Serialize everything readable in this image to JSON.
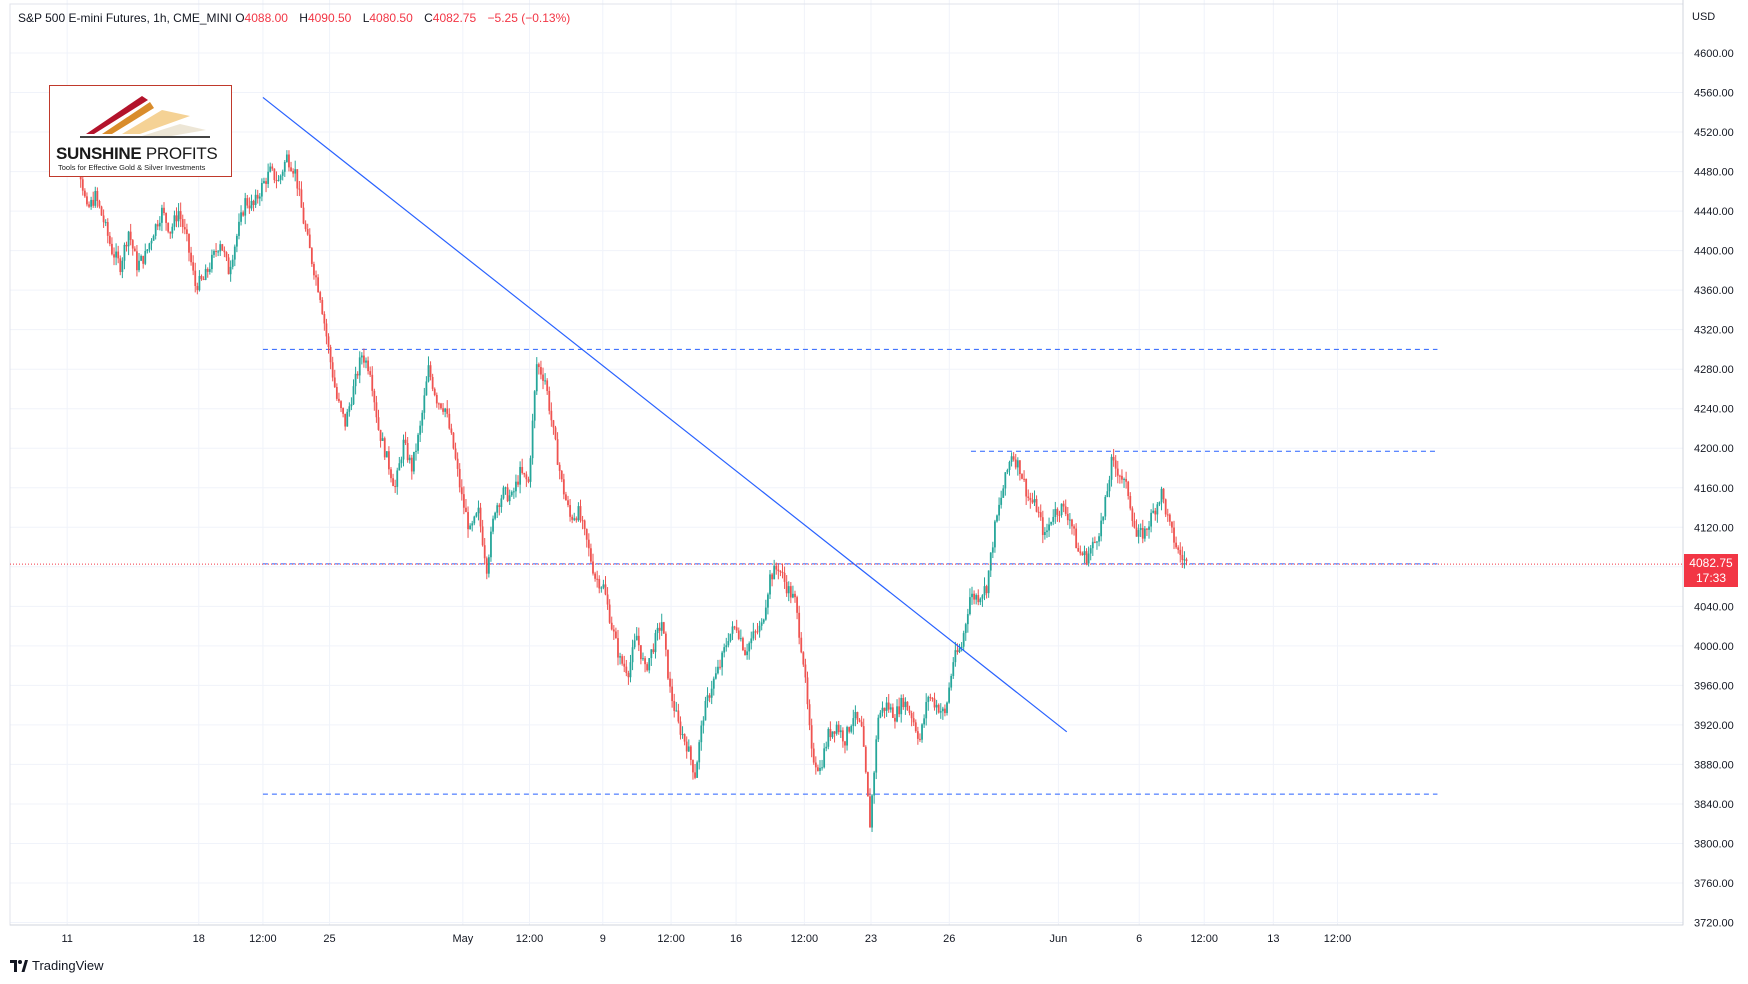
{
  "header": {
    "symbol": "S&P 500 E-mini Futures, 1h, CME_MINI",
    "open_label": "O",
    "open": "4088.00",
    "high_label": "H",
    "high": "4090.50",
    "low_label": "L",
    "low": "4080.50",
    "close_label": "C",
    "close": "4082.75",
    "change": "−5.25 (−0.13%)"
  },
  "axis": {
    "currency": "USD"
  },
  "price_tag": {
    "price": "4082.75",
    "countdown": "17:33"
  },
  "logo": {
    "title_bold": "SUNSHINE",
    "title_thin": " PROFITS",
    "subtitle": "Tools for Effective Gold & Silver Investments"
  },
  "footer": {
    "brand": "TradingView"
  },
  "colors": {
    "up": "#26a69a",
    "down": "#ef5350",
    "trendline": "#2962ff",
    "level": "#2962ff",
    "price": "#f23645"
  },
  "chart_data": {
    "type": "candlestick",
    "interval": "1h",
    "ylim": [
      3720,
      4620
    ],
    "y_ticks": [
      3720,
      3760,
      3800,
      3840,
      3880,
      3920,
      3960,
      4000,
      4040,
      4080,
      4120,
      4160,
      4200,
      4240,
      4280,
      4320,
      4360,
      4400,
      4440,
      4480,
      4520,
      4560,
      4600
    ],
    "y_tick_labels": [
      "3720.00",
      "3760.00",
      "3800.00",
      "3840.00",
      "3880.00",
      "3920.00",
      "3960.00",
      "4000.00",
      "4040.00",
      "4080.00",
      "4120.00",
      "4160.00",
      "4200.00",
      "4240.00",
      "4280.00",
      "4320.00",
      "4360.00",
      "4400.00",
      "4440.00",
      "4480.00",
      "4520.00",
      "4560.00",
      "4600.00"
    ],
    "x_ticks": [
      "11",
      "18",
      "12:00",
      "25",
      "May",
      "12:00",
      "9",
      "12:00",
      "16",
      "12:00",
      "23",
      "26",
      "Jun",
      "6",
      "12:00",
      "13",
      "12:00"
    ],
    "x_tick_index": [
      0.5,
      16.3,
      24.0,
      32.0,
      48.0,
      56.0,
      64.8,
      73.0,
      80.8,
      89.0,
      97.0,
      106.4,
      119.5,
      129.2,
      137.0,
      145.3,
      153.0
    ],
    "price_path": [
      [
        0,
        4490
      ],
      [
        1,
        4510
      ],
      [
        2,
        4490
      ],
      [
        3,
        4440
      ],
      [
        4,
        4455
      ],
      [
        5,
        4430
      ],
      [
        6,
        4400
      ],
      [
        7,
        4385
      ],
      [
        8,
        4420
      ],
      [
        9,
        4385
      ],
      [
        10,
        4395
      ],
      [
        11,
        4420
      ],
      [
        12,
        4440
      ],
      [
        13,
        4420
      ],
      [
        14,
        4440
      ],
      [
        15,
        4410
      ],
      [
        16,
        4365
      ],
      [
        17,
        4370
      ],
      [
        18,
        4390
      ],
      [
        19,
        4410
      ],
      [
        20,
        4380
      ],
      [
        21,
        4415
      ],
      [
        22,
        4450
      ],
      [
        23,
        4445
      ],
      [
        24,
        4465
      ],
      [
        25,
        4480
      ],
      [
        26,
        4470
      ],
      [
        27,
        4495
      ],
      [
        28,
        4480
      ],
      [
        29,
        4430
      ],
      [
        30,
        4390
      ],
      [
        31,
        4355
      ],
      [
        32,
        4300
      ],
      [
        33,
        4250
      ],
      [
        34,
        4225
      ],
      [
        35,
        4260
      ],
      [
        36,
        4295
      ],
      [
        37,
        4280
      ],
      [
        38,
        4220
      ],
      [
        39,
        4190
      ],
      [
        40,
        4160
      ],
      [
        41,
        4205
      ],
      [
        42,
        4180
      ],
      [
        43,
        4220
      ],
      [
        44,
        4280
      ],
      [
        45,
        4250
      ],
      [
        46,
        4240
      ],
      [
        47,
        4200
      ],
      [
        48,
        4150
      ],
      [
        49,
        4115
      ],
      [
        50,
        4135
      ],
      [
        51,
        4080
      ],
      [
        52,
        4140
      ],
      [
        53,
        4155
      ],
      [
        54,
        4150
      ],
      [
        55,
        4175
      ],
      [
        56,
        4165
      ],
      [
        57,
        4285
      ],
      [
        58,
        4270
      ],
      [
        59,
        4215
      ],
      [
        60,
        4165
      ],
      [
        61,
        4130
      ],
      [
        62,
        4135
      ],
      [
        63,
        4105
      ],
      [
        64,
        4070
      ],
      [
        65,
        4060
      ],
      [
        66,
        4020
      ],
      [
        67,
        3985
      ],
      [
        68,
        3975
      ],
      [
        69,
        4010
      ],
      [
        70,
        3975
      ],
      [
        71,
        4000
      ],
      [
        72,
        4025
      ],
      [
        73,
        3955
      ],
      [
        74,
        3920
      ],
      [
        75,
        3900
      ],
      [
        76,
        3870
      ],
      [
        77,
        3930
      ],
      [
        78,
        3960
      ],
      [
        79,
        3980
      ],
      [
        80,
        4010
      ],
      [
        81,
        4020
      ],
      [
        82,
        3995
      ],
      [
        83,
        4010
      ],
      [
        84,
        4020
      ],
      [
        85,
        4070
      ],
      [
        86,
        4080
      ],
      [
        87,
        4060
      ],
      [
        88,
        4045
      ],
      [
        89,
        3985
      ],
      [
        90,
        3890
      ],
      [
        91,
        3875
      ],
      [
        92,
        3910
      ],
      [
        93,
        3920
      ],
      [
        94,
        3905
      ],
      [
        95,
        3930
      ],
      [
        96,
        3915
      ],
      [
        97,
        3820
      ],
      [
        98,
        3930
      ],
      [
        99,
        3940
      ],
      [
        100,
        3930
      ],
      [
        101,
        3945
      ],
      [
        102,
        3930
      ],
      [
        103,
        3905
      ],
      [
        104,
        3950
      ],
      [
        105,
        3940
      ],
      [
        106,
        3930
      ],
      [
        107,
        3985
      ],
      [
        108,
        4000
      ],
      [
        109,
        4050
      ],
      [
        110,
        4050
      ],
      [
        111,
        4060
      ],
      [
        112,
        4120
      ],
      [
        113,
        4160
      ],
      [
        114,
        4195
      ],
      [
        115,
        4180
      ],
      [
        116,
        4150
      ],
      [
        117,
        4140
      ],
      [
        118,
        4110
      ],
      [
        119,
        4135
      ],
      [
        120,
        4140
      ],
      [
        121,
        4130
      ],
      [
        122,
        4095
      ],
      [
        123,
        4090
      ],
      [
        124,
        4105
      ],
      [
        125,
        4130
      ],
      [
        126,
        4185
      ],
      [
        127,
        4175
      ],
      [
        128,
        4155
      ],
      [
        129,
        4110
      ],
      [
        130,
        4115
      ],
      [
        131,
        4135
      ],
      [
        132,
        4155
      ],
      [
        133,
        4120
      ],
      [
        134,
        4095
      ],
      [
        135,
        4083
      ]
    ],
    "horizontal_levels": [
      {
        "price": 4300,
        "from_index": 24,
        "to_index": 165
      },
      {
        "price": 4197,
        "from_index": 109,
        "to_index": 165
      },
      {
        "price": 4083,
        "from_index": 24,
        "to_index": 165
      },
      {
        "price": 3850,
        "from_index": 24,
        "to_index": 165
      }
    ],
    "trendline": {
      "from": [
        24,
        4555
      ],
      "to": [
        120.5,
        3913
      ]
    },
    "last_price": 4082.75
  }
}
